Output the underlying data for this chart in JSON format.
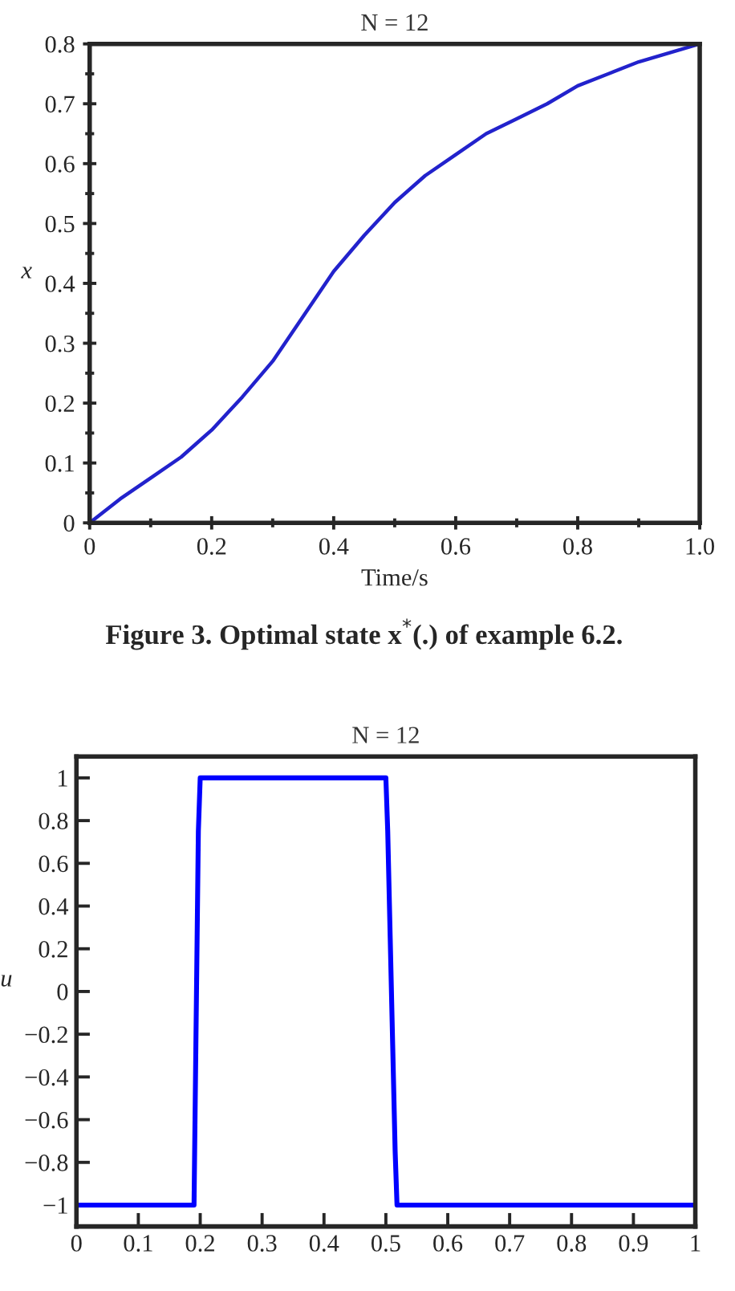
{
  "chart_data": [
    {
      "type": "line",
      "title": "N = 12",
      "xlabel": "Time/s",
      "ylabel": "x",
      "annotations": [
        "Figure 3. Optimal state x$^{*}$(.) of example 6.2."
      ],
      "series": [
        {
          "color": "#2222cc",
          "x": [
            0,
            0.05,
            0.1,
            0.15,
            0.2,
            0.25,
            0.3,
            0.35,
            0.4,
            0.45,
            0.5,
            0.55,
            0.6,
            0.65,
            0.7,
            0.75,
            0.8,
            0.85,
            0.9,
            0.95,
            1.0
          ],
          "values": [
            0,
            0.04,
            0.075,
            0.11,
            0.155,
            0.21,
            0.27,
            0.345,
            0.42,
            0.48,
            0.535,
            0.58,
            0.615,
            0.65,
            0.675,
            0.7,
            0.73,
            0.75,
            0.77,
            0.785,
            0.8
          ]
        }
      ],
      "xlim": [
        0,
        1.0
      ],
      "ylim": [
        0,
        0.8
      ],
      "xticks": [
        0,
        0.2,
        0.4,
        0.6,
        0.8,
        {
          "value": 1.0,
          "label": "1.0"
        }
      ],
      "yticks": [
        0,
        0.1,
        0.2,
        0.3,
        0.4,
        0.5,
        0.6,
        0.7,
        0.8
      ],
      "grid": false,
      "legend": false
    },
    {
      "type": "line",
      "title": "N = 12",
      "ylabel": "u",
      "series": [
        {
          "color": "#0000ff",
          "x": [
            0,
            0.19,
            0.193,
            0.195,
            0.197,
            0.2,
            0.5,
            0.503,
            0.507,
            0.511,
            0.515,
            0.518,
            1.0
          ],
          "values": [
            -1,
            -1,
            -0.25,
            0.25,
            0.75,
            1,
            1,
            0.75,
            0.25,
            -0.25,
            -0.75,
            -1,
            -1
          ]
        }
      ],
      "xlim": [
        0,
        1
      ],
      "ylim": [
        -1.1,
        1.1
      ],
      "xticks": [
        0,
        0.1,
        0.2,
        0.3,
        0.4,
        0.5,
        0.6,
        0.7,
        0.8,
        0.9,
        1
      ],
      "yticks": [
        {
          "value": -1,
          "label": "−1"
        },
        {
          "value": -0.8,
          "label": "−0.8"
        },
        {
          "value": -0.6,
          "label": "−0.6"
        },
        {
          "value": -0.4,
          "label": "−0.4"
        },
        {
          "value": -0.2,
          "label": "−0.2"
        },
        0,
        0.2,
        0.4,
        0.6,
        0.8,
        1
      ],
      "grid": false,
      "legend": false
    }
  ]
}
